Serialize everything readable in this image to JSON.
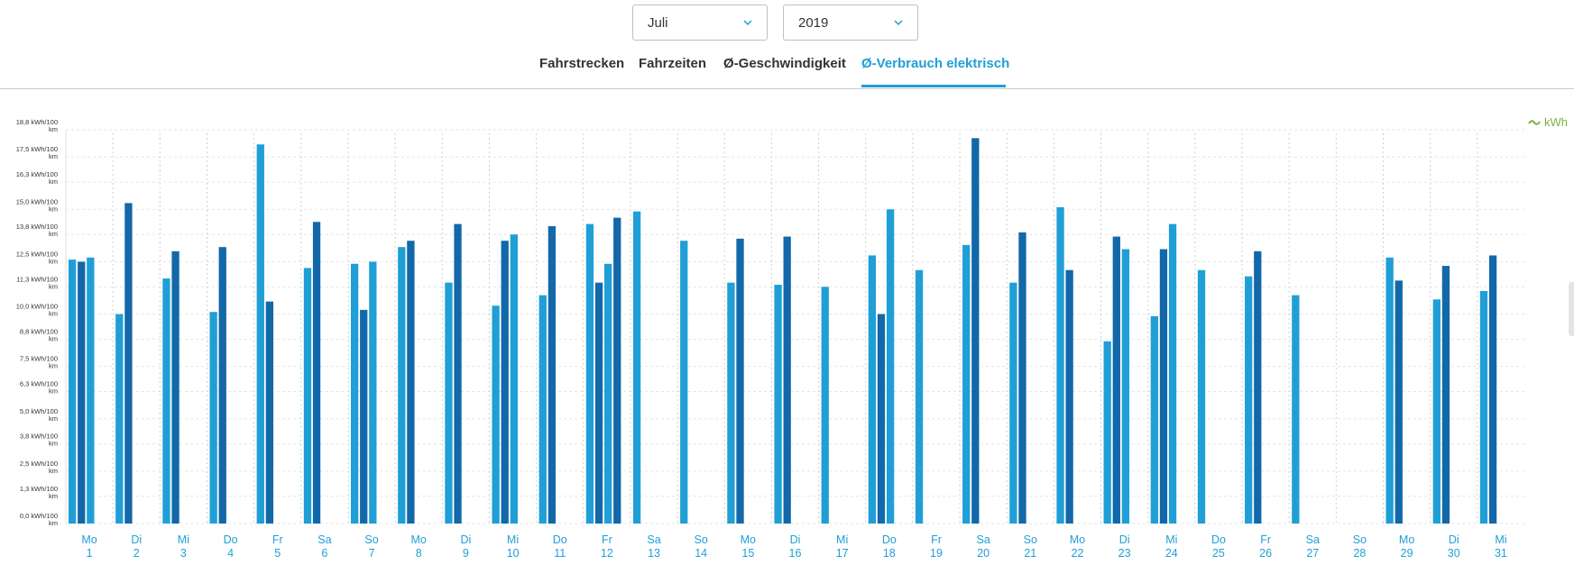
{
  "filters": {
    "month": "Juli",
    "year": "2019"
  },
  "tabs": [
    {
      "label": "Fahrstrecken",
      "active": false
    },
    {
      "label": "Fahrzeiten",
      "active": false
    },
    {
      "label": "Ø-Geschwindigkeit",
      "active": false
    },
    {
      "label": "Ø-Verbrauch elektrisch",
      "active": true
    }
  ],
  "legend": {
    "label": "kWh",
    "color": "#7cb342"
  },
  "colors": {
    "light": "#1f9fd6",
    "dark": "#1268a8",
    "label": "#1f9fd6"
  },
  "chart_data": {
    "type": "bar",
    "ylim": [
      0,
      18.8
    ],
    "y_tick_values": [
      0.0,
      1.3,
      2.5,
      3.8,
      5.0,
      6.3,
      7.5,
      8.8,
      10.0,
      11.3,
      12.5,
      13.8,
      15.0,
      16.3,
      17.5,
      18.8
    ],
    "y_tick_labels": [
      "0,0 kWh/100 km",
      "1,3 kWh/100 km",
      "2,5 kWh/100 km",
      "3,8 kWh/100 km",
      "5,0 kWh/100 km",
      "6,3 kWh/100 km",
      "7,5 kWh/100 km",
      "8,8 kWh/100 km",
      "10,0 kWh/100 km",
      "11,3 kWh/100 km",
      "12,5 kWh/100 km",
      "13,8 kWh/100 km",
      "15,0 kWh/100 km",
      "16,3 kWh/100 km",
      "17,5 kWh/100 km",
      "18,8 kWh/100 km"
    ],
    "categories": [
      {
        "day": "Mo",
        "date": "1",
        "bars": [
          {
            "v": 12.6,
            "s": "light"
          },
          {
            "v": 12.5,
            "s": "dark"
          },
          {
            "v": 12.7,
            "s": "light"
          }
        ]
      },
      {
        "day": "Di",
        "date": "2",
        "bars": [
          {
            "v": 10.0,
            "s": "light"
          },
          {
            "v": 15.3,
            "s": "dark"
          }
        ]
      },
      {
        "day": "Mi",
        "date": "3",
        "bars": [
          {
            "v": 11.7,
            "s": "light"
          },
          {
            "v": 13.0,
            "s": "dark"
          }
        ]
      },
      {
        "day": "Do",
        "date": "4",
        "bars": [
          {
            "v": 10.1,
            "s": "light"
          },
          {
            "v": 13.2,
            "s": "dark"
          }
        ]
      },
      {
        "day": "Fr",
        "date": "5",
        "bars": [
          {
            "v": 18.1,
            "s": "light"
          },
          {
            "v": 10.6,
            "s": "dark"
          }
        ]
      },
      {
        "day": "Sa",
        "date": "6",
        "bars": [
          {
            "v": 12.2,
            "s": "light"
          },
          {
            "v": 14.4,
            "s": "dark"
          }
        ]
      },
      {
        "day": "So",
        "date": "7",
        "bars": [
          {
            "v": 12.4,
            "s": "light"
          },
          {
            "v": 10.2,
            "s": "dark"
          },
          {
            "v": 12.5,
            "s": "light"
          }
        ]
      },
      {
        "day": "Mo",
        "date": "8",
        "bars": [
          {
            "v": 13.2,
            "s": "light"
          },
          {
            "v": 13.5,
            "s": "dark"
          }
        ]
      },
      {
        "day": "Di",
        "date": "9",
        "bars": [
          {
            "v": 11.5,
            "s": "light"
          },
          {
            "v": 14.3,
            "s": "dark"
          }
        ]
      },
      {
        "day": "Mi",
        "date": "10",
        "bars": [
          {
            "v": 10.4,
            "s": "light"
          },
          {
            "v": 13.5,
            "s": "dark"
          },
          {
            "v": 13.8,
            "s": "light"
          }
        ]
      },
      {
        "day": "Do",
        "date": "11",
        "bars": [
          {
            "v": 10.9,
            "s": "light"
          },
          {
            "v": 14.2,
            "s": "dark"
          }
        ]
      },
      {
        "day": "Fr",
        "date": "12",
        "bars": [
          {
            "v": 14.3,
            "s": "light"
          },
          {
            "v": 11.5,
            "s": "dark"
          },
          {
            "v": 12.4,
            "s": "light"
          },
          {
            "v": 14.6,
            "s": "dark"
          }
        ]
      },
      {
        "day": "Sa",
        "date": "13",
        "bars": [
          {
            "v": 14.9,
            "s": "light"
          }
        ]
      },
      {
        "day": "So",
        "date": "14",
        "bars": [
          {
            "v": 13.5,
            "s": "light"
          }
        ]
      },
      {
        "day": "Mo",
        "date": "15",
        "bars": [
          {
            "v": 11.5,
            "s": "light"
          },
          {
            "v": 13.6,
            "s": "dark"
          }
        ]
      },
      {
        "day": "Di",
        "date": "16",
        "bars": [
          {
            "v": 11.4,
            "s": "light"
          },
          {
            "v": 13.7,
            "s": "dark"
          }
        ]
      },
      {
        "day": "Mi",
        "date": "17",
        "bars": [
          {
            "v": 11.3,
            "s": "light"
          }
        ]
      },
      {
        "day": "Do",
        "date": "18",
        "bars": [
          {
            "v": 12.8,
            "s": "light"
          },
          {
            "v": 10.0,
            "s": "dark"
          },
          {
            "v": 15.0,
            "s": "light"
          }
        ]
      },
      {
        "day": "Fr",
        "date": "19",
        "bars": [
          {
            "v": 12.1,
            "s": "light"
          }
        ]
      },
      {
        "day": "Sa",
        "date": "20",
        "bars": [
          {
            "v": 13.3,
            "s": "light"
          },
          {
            "v": 18.4,
            "s": "dark"
          }
        ]
      },
      {
        "day": "So",
        "date": "21",
        "bars": [
          {
            "v": 11.5,
            "s": "light"
          },
          {
            "v": 13.9,
            "s": "dark"
          }
        ]
      },
      {
        "day": "Mo",
        "date": "22",
        "bars": [
          {
            "v": 15.1,
            "s": "light"
          },
          {
            "v": 12.1,
            "s": "dark"
          }
        ]
      },
      {
        "day": "Di",
        "date": "23",
        "bars": [
          {
            "v": 8.7,
            "s": "light"
          },
          {
            "v": 13.7,
            "s": "dark"
          },
          {
            "v": 13.1,
            "s": "light"
          }
        ]
      },
      {
        "day": "Mi",
        "date": "24",
        "bars": [
          {
            "v": 9.9,
            "s": "light"
          },
          {
            "v": 13.1,
            "s": "dark"
          },
          {
            "v": 14.3,
            "s": "light"
          }
        ]
      },
      {
        "day": "Do",
        "date": "25",
        "bars": [
          {
            "v": 12.1,
            "s": "light"
          }
        ]
      },
      {
        "day": "Fr",
        "date": "26",
        "bars": [
          {
            "v": 11.8,
            "s": "light"
          },
          {
            "v": 13.0,
            "s": "dark"
          }
        ]
      },
      {
        "day": "Sa",
        "date": "27",
        "bars": [
          {
            "v": 10.9,
            "s": "light"
          }
        ]
      },
      {
        "day": "So",
        "date": "28",
        "bars": []
      },
      {
        "day": "Mo",
        "date": "29",
        "bars": [
          {
            "v": 12.7,
            "s": "light"
          },
          {
            "v": 11.6,
            "s": "dark"
          }
        ]
      },
      {
        "day": "Di",
        "date": "30",
        "bars": [
          {
            "v": 10.7,
            "s": "light"
          },
          {
            "v": 12.3,
            "s": "dark"
          }
        ]
      },
      {
        "day": "Mi",
        "date": "31",
        "bars": [
          {
            "v": 11.1,
            "s": "light"
          },
          {
            "v": 12.8,
            "s": "dark"
          }
        ]
      }
    ]
  }
}
